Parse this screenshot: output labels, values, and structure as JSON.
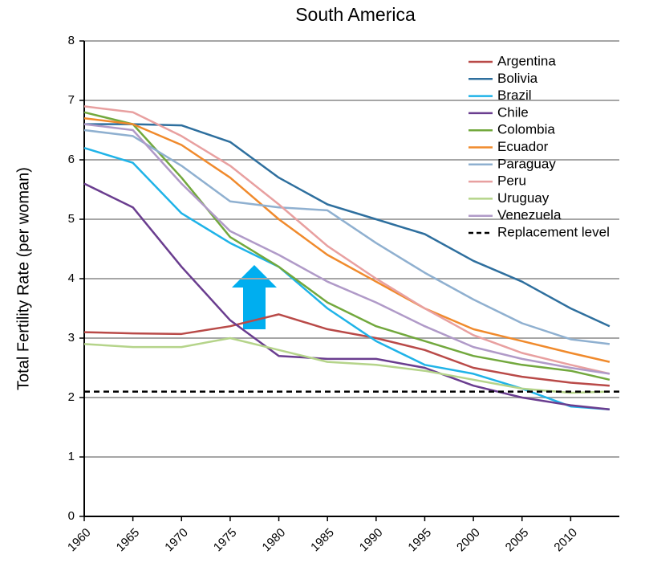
{
  "chart_data": {
    "type": "line",
    "title": "South America",
    "y_label": "Total Fertility Rate (per woman)",
    "x": [
      1960,
      1965,
      1970,
      1975,
      1980,
      1985,
      1990,
      1995,
      2000,
      2005,
      2010,
      2014
    ],
    "xlim": [
      1960,
      2015
    ],
    "xticks": [
      1960,
      1965,
      1970,
      1975,
      1980,
      1985,
      1990,
      1995,
      2000,
      2005,
      2010
    ],
    "ylim": [
      0,
      8
    ],
    "yticks": [
      0,
      1,
      2,
      3,
      4,
      5,
      6,
      7,
      8
    ],
    "grid": true,
    "legend": "upper right",
    "series": [
      {
        "name": "Argentina",
        "color": "#b94a48",
        "values": [
          3.1,
          3.08,
          3.07,
          3.2,
          3.4,
          3.15,
          3.0,
          2.8,
          2.5,
          2.35,
          2.25,
          2.2
        ]
      },
      {
        "name": "Bolivia",
        "color": "#2e6f9e",
        "values": [
          6.6,
          6.6,
          6.58,
          6.3,
          5.7,
          5.25,
          5.0,
          4.75,
          4.3,
          3.95,
          3.5,
          3.2
        ]
      },
      {
        "name": "Brazil",
        "color": "#1fb3e8",
        "values": [
          6.2,
          5.95,
          5.1,
          4.6,
          4.2,
          3.5,
          2.95,
          2.55,
          2.4,
          2.15,
          1.85,
          1.8
        ]
      },
      {
        "name": "Chile",
        "color": "#6a3d8f",
        "values": [
          5.6,
          5.2,
          4.2,
          3.3,
          2.7,
          2.65,
          2.65,
          2.5,
          2.2,
          2.0,
          1.87,
          1.8
        ]
      },
      {
        "name": "Colombia",
        "color": "#72a83d",
        "values": [
          6.8,
          6.6,
          5.7,
          4.7,
          4.2,
          3.6,
          3.2,
          2.95,
          2.7,
          2.55,
          2.45,
          2.3
        ]
      },
      {
        "name": "Ecuador",
        "color": "#f08a2c",
        "values": [
          6.7,
          6.6,
          6.25,
          5.7,
          5.0,
          4.4,
          3.95,
          3.5,
          3.15,
          2.95,
          2.75,
          2.6
        ]
      },
      {
        "name": "Paraguay",
        "color": "#8fb0d0",
        "values": [
          6.5,
          6.4,
          5.9,
          5.3,
          5.2,
          5.15,
          4.6,
          4.1,
          3.65,
          3.25,
          2.98,
          2.9
        ]
      },
      {
        "name": "Peru",
        "color": "#e8a0a0",
        "values": [
          6.9,
          6.8,
          6.4,
          5.9,
          5.25,
          4.55,
          4.0,
          3.5,
          3.05,
          2.75,
          2.55,
          2.4
        ]
      },
      {
        "name": "Uruguay",
        "color": "#b5d48a",
        "values": [
          2.9,
          2.85,
          2.85,
          3.0,
          2.8,
          2.6,
          2.55,
          2.45,
          2.3,
          2.15,
          2.08,
          2.1
        ]
      },
      {
        "name": "Venezuela",
        "color": "#b09ac8",
        "values": [
          6.6,
          6.5,
          5.6,
          4.8,
          4.4,
          3.95,
          3.6,
          3.2,
          2.85,
          2.65,
          2.5,
          2.4
        ]
      }
    ],
    "reference_line": {
      "name": "Replacement level",
      "value": 2.1,
      "color": "#000000"
    }
  }
}
